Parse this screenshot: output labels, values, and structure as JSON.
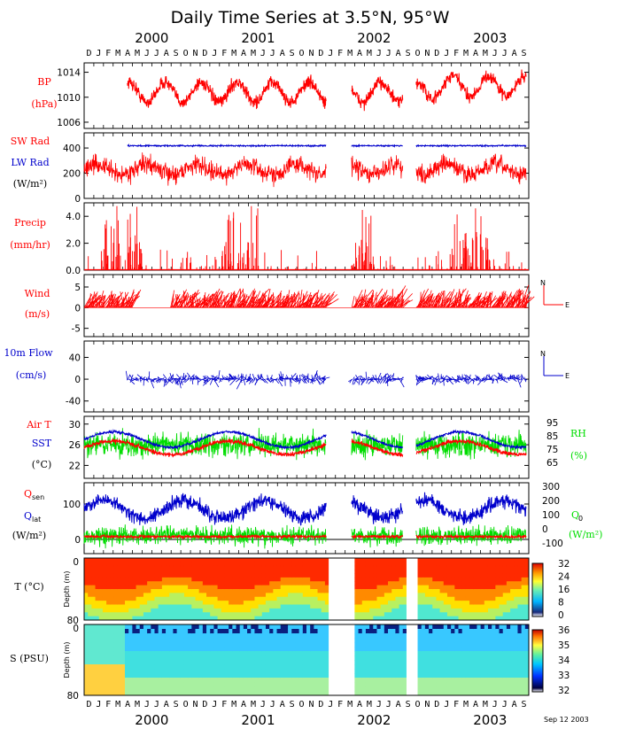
{
  "colors": {
    "red": "#ff0000",
    "blue": "#0000cc",
    "green": "#00dd00",
    "black": "#000000"
  },
  "figure": {
    "title": "Daily Time Series at 3.5°N, 95°W",
    "top_years": [
      "2000",
      "2001",
      "2002",
      "2003"
    ],
    "bottom_years": [
      "2000",
      "2001",
      "2002",
      "2003"
    ],
    "months": [
      "D",
      "J",
      "F",
      "M",
      "A",
      "M",
      "J",
      "J",
      "A",
      "S",
      "O",
      "N",
      "D",
      "J",
      "F",
      "M",
      "A",
      "M",
      "J",
      "J",
      "A",
      "S",
      "O",
      "N",
      "D",
      "J",
      "F",
      "M",
      "A",
      "M",
      "J",
      "J",
      "A",
      "S",
      "O",
      "N",
      "D",
      "J",
      "F",
      "M",
      "A",
      "M",
      "J",
      "J",
      "A",
      "S"
    ],
    "footer_date": "Sep 12 2003"
  },
  "chart_data": [
    {
      "type": "line",
      "labels": [
        "BP",
        "(hPa)"
      ],
      "yticks": [
        "1014",
        "1010",
        "1006"
      ],
      "ylim": [
        1005,
        1015.5
      ],
      "series": [
        {
          "name": "BP",
          "color": "#ff0000",
          "data_gaps": [
            [
              "2002-01-01",
              "2002-03-10"
            ],
            [
              "2002-08-25",
              "2002-10-20"
            ]
          ]
        }
      ],
      "values_summary": {
        "typical_min": 1008,
        "typical_max": 1013,
        "x_start": "2000-04-15",
        "x_end": "2003-08-31"
      }
    },
    {
      "type": "line",
      "labels": [
        "SW Rad",
        "LW Rad",
        "(W/m²)"
      ],
      "yticks": [
        "400",
        "200",
        "0"
      ],
      "ylim": [
        0,
        520
      ],
      "series": [
        {
          "name": "SW Rad",
          "color": "#ff0000",
          "typical_range": [
            100,
            310
          ]
        },
        {
          "name": "LW Rad",
          "color": "#0000cc",
          "typical": 415
        }
      ]
    },
    {
      "type": "bar",
      "labels": [
        "Precip",
        "(mm/hr)"
      ],
      "yticks": [
        "4.0",
        "2.0",
        "0.0"
      ],
      "ylim": [
        0,
        5
      ],
      "series": [
        {
          "name": "Precip",
          "color": "#ff0000",
          "max": 5.0
        }
      ]
    },
    {
      "type": "vector",
      "labels": [
        "Wind",
        "(m/s)"
      ],
      "yticks": [
        "5",
        "0",
        "-5"
      ],
      "ylim": [
        -7,
        8
      ],
      "compass": [
        "N",
        "E"
      ],
      "series": [
        {
          "name": "Wind",
          "color": "#ff0000"
        }
      ]
    },
    {
      "type": "vector",
      "labels": [
        "10m Flow",
        "(cm/s)"
      ],
      "yticks": [
        "40",
        "0",
        "-40"
      ],
      "ylim": [
        -60,
        70
      ],
      "compass": [
        "N",
        "E"
      ],
      "series": [
        {
          "name": "10m Flow",
          "color": "#0000cc"
        }
      ]
    },
    {
      "type": "line",
      "labels": [
        "Air T",
        "SST",
        "(°C)"
      ],
      "yticks": [
        "30",
        "26",
        "22"
      ],
      "right_ticks": [
        "95",
        "85",
        "75",
        "65"
      ],
      "right_labels": [
        "RH",
        "(%)"
      ],
      "ylim": [
        19.5,
        31.5
      ],
      "series": [
        {
          "name": "Air T",
          "color": "#ff0000",
          "typical": 24.5
        },
        {
          "name": "SST",
          "color": "#0000cc",
          "typical": 26.5
        },
        {
          "name": "RH",
          "color": "#00dd00",
          "typical": 80
        }
      ]
    },
    {
      "type": "line",
      "labels": [
        "Qsen",
        "Qlat",
        "(W/m²)"
      ],
      "yticks": [
        "100",
        "0"
      ],
      "right_ticks": [
        "300",
        "200",
        "100",
        "0",
        "-100"
      ],
      "right_labels": [
        "Q0",
        "(W/m²)"
      ],
      "ylim": [
        -40,
        160
      ],
      "series": [
        {
          "name": "Qsen",
          "color": "#ff0000",
          "typical": 10
        },
        {
          "name": "Qlat",
          "color": "#0000cc",
          "typical": 90
        },
        {
          "name": "Q0",
          "color": "#00dd00",
          "typical": 60
        }
      ]
    },
    {
      "type": "heatmap",
      "labels": [
        "T (°C)",
        "Depth (m)"
      ],
      "yticks": [
        "0",
        "80"
      ],
      "colorbar": [
        "32",
        "24",
        "16",
        "8",
        "0"
      ],
      "zlim": [
        0,
        32
      ]
    },
    {
      "type": "heatmap",
      "labels": [
        "S (PSU)",
        "Depth (m)"
      ],
      "yticks": [
        "0",
        "80"
      ],
      "colorbar": [
        "36",
        "35",
        "34",
        "33",
        "32"
      ],
      "zlim": [
        32,
        36
      ]
    }
  ]
}
